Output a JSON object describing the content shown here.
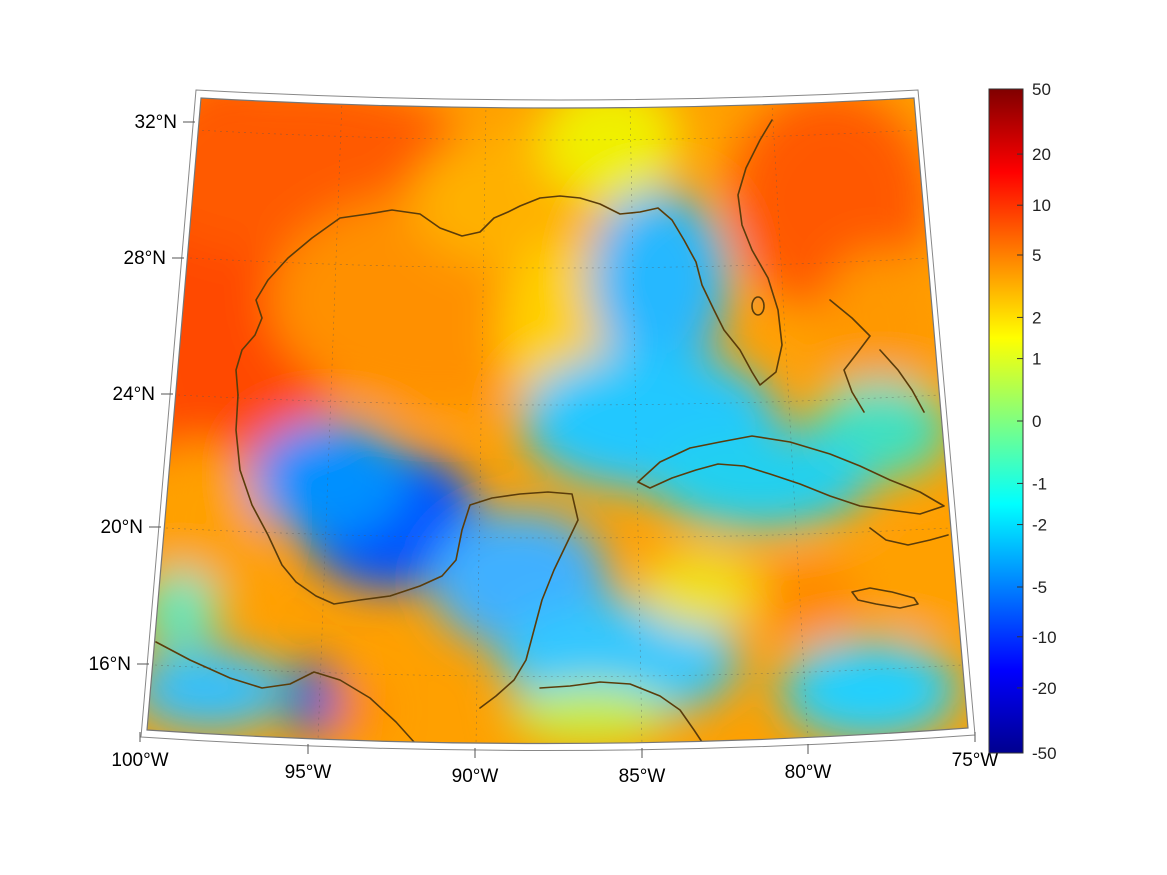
{
  "map": {
    "projection": "conic",
    "lon_range": [
      -100,
      -75
    ],
    "lat_range": [
      14,
      33
    ],
    "lon_ticks": [
      {
        "value": -100,
        "label": "100°W"
      },
      {
        "value": -95,
        "label": "95°W"
      },
      {
        "value": -90,
        "label": "90°W"
      },
      {
        "value": -85,
        "label": "85°W"
      },
      {
        "value": -80,
        "label": "80°W"
      },
      {
        "value": -75,
        "label": "75°W"
      }
    ],
    "lat_ticks": [
      {
        "value": 16,
        "label": "16°N"
      },
      {
        "value": 20,
        "label": "20°N"
      },
      {
        "value": 24,
        "label": "24°N"
      },
      {
        "value": 28,
        "label": "28°N"
      },
      {
        "value": 32,
        "label": "32°N"
      }
    ],
    "coastline_color": "#5a3c0a"
  },
  "colorbar": {
    "colormap": "jet",
    "scale": "symmetric-log",
    "labels": [
      "50",
      "20",
      "10",
      "5",
      "2",
      "1",
      "0",
      "-1",
      "-2",
      "-5",
      "-10",
      "-20",
      "-50"
    ],
    "colors": [
      "#00008f",
      "#0000ff",
      "#0080ff",
      "#00ffff",
      "#80ff80",
      "#ffff00",
      "#ff8000",
      "#ff0000",
      "#800000"
    ]
  }
}
